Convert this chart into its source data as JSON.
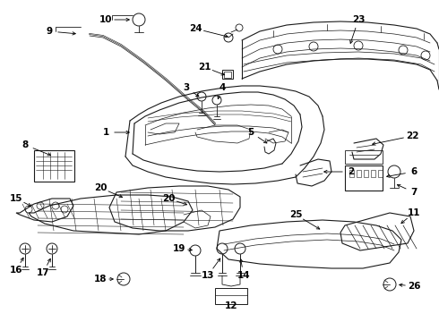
{
  "bg_color": "#ffffff",
  "line_color": "#1a1a1a",
  "fig_width": 4.9,
  "fig_height": 3.6,
  "dpi": 100,
  "label_fs": 7.5,
  "label_fw": "bold"
}
